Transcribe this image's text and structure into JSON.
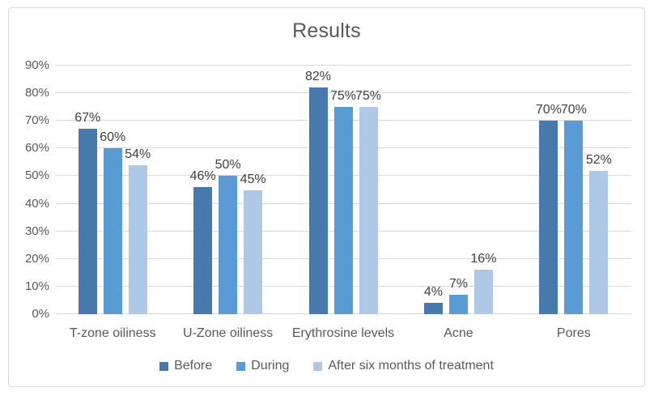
{
  "chart_data": {
    "type": "bar",
    "title": "Results",
    "categories": [
      "T-zone oiliness",
      "U-Zone oiliness",
      "Erythrosine levels",
      "Acne",
      "Pores"
    ],
    "series": [
      {
        "name": "Before",
        "color": "#4879AC",
        "values": [
          67,
          46,
          82,
          4,
          70
        ]
      },
      {
        "name": "During",
        "color": "#5B9BD5",
        "values": [
          60,
          50,
          75,
          7,
          70
        ]
      },
      {
        "name": "After six months of treatment",
        "color": "#AFC8E8",
        "values": [
          54,
          45,
          75,
          16,
          52
        ]
      }
    ],
    "value_labels": [
      [
        "67%",
        "46%",
        "82%",
        "4%",
        "70%"
      ],
      [
        "60%",
        "50%",
        "75%",
        "7%",
        "70%"
      ],
      [
        "54%",
        "45%",
        "75%",
        "16%",
        "52%"
      ]
    ],
    "ylim": [
      0,
      90
    ],
    "ytick_step": 10,
    "ytick_labels": [
      "0%",
      "10%",
      "20%",
      "30%",
      "40%",
      "50%",
      "60%",
      "70%",
      "80%",
      "90%"
    ],
    "grid": true,
    "legend_position": "bottom",
    "colors": {
      "gridline": "#D9D9D9",
      "axis_text": "#595959",
      "value_label_text": "#404040",
      "title_text": "#595959",
      "frame_border": "#D9D9D9"
    }
  }
}
